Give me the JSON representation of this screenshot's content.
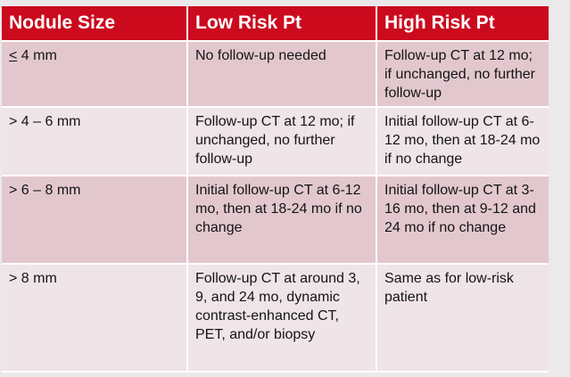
{
  "table": {
    "headers": [
      "Nodule Size",
      "Low Risk Pt",
      "High Risk Pt"
    ],
    "rows": [
      {
        "size_prefix": "<",
        "size_rest": " 4 mm",
        "low": "No follow-up needed",
        "high": "Follow-up CT at 12 mo; if unchanged, no further follow-up"
      },
      {
        "size": "> 4 – 6 mm",
        "low": "Follow-up CT at 12 mo; if unchanged, no further follow-up",
        "high": "Initial follow-up CT at 6-12 mo, then at 18-24 mo if no change"
      },
      {
        "size": "> 6 – 8 mm",
        "low": "Initial follow-up CT at 6-12 mo, then at 18-24 mo if no change",
        "high": "Initial follow-up CT at 3-16 mo, then at 9-12 and 24 mo if no change"
      },
      {
        "size": "> 8 mm",
        "low": "Follow-up CT at around 3, 9, and 24 mo, dynamic contrast-enhanced CT, PET, and/or biopsy",
        "high": "Same as for low-risk patient"
      }
    ]
  },
  "colors": {
    "header_bg": "#cc0a1e",
    "row_dark": "#e2c8ce",
    "row_light": "#efe4e7"
  }
}
